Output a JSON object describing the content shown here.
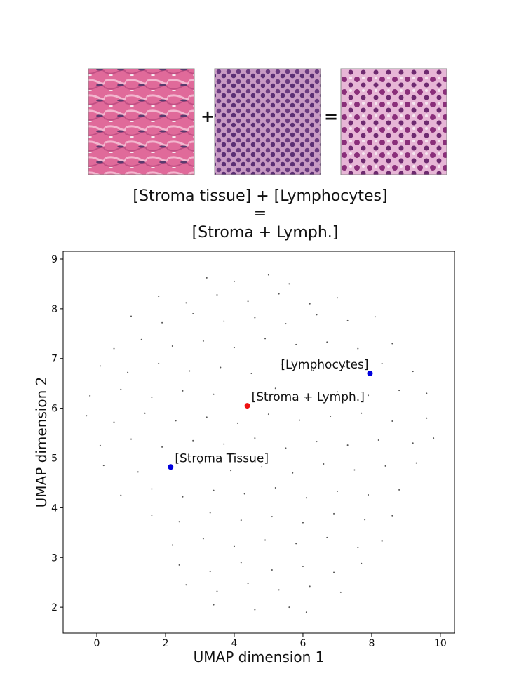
{
  "equation": {
    "plus": "+",
    "equals": "=",
    "caption": [
      "[Stroma tissue] + [Lymphocytes]",
      "=",
      "[Stroma + Lymph.]"
    ]
  },
  "chart_data": {
    "type": "scatter",
    "xlabel": "UMAP dimension 1",
    "ylabel": "UMAP dimension 2",
    "xlim": [
      -0.98,
      10.41
    ],
    "ylim": [
      1.48,
      9.155
    ],
    "xticks": [
      0,
      2,
      4,
      6,
      8,
      10
    ],
    "yticks": [
      2,
      3,
      4,
      5,
      6,
      7,
      8,
      9
    ],
    "series": [
      {
        "color": "#555555",
        "x": [
          3.2,
          4.0,
          5.0,
          5.6,
          1.8,
          2.6,
          3.5,
          4.4,
          5.3,
          6.2,
          7.0,
          1.0,
          1.9,
          2.8,
          3.7,
          4.6,
          5.5,
          6.4,
          7.3,
          8.1,
          0.5,
          1.3,
          2.2,
          3.1,
          4.0,
          4.9,
          5.8,
          6.7,
          7.6,
          8.6,
          0.1,
          0.9,
          1.8,
          2.7,
          3.6,
          4.5,
          5.4,
          6.3,
          7.2,
          8.3,
          9.2,
          -0.2,
          0.7,
          1.6,
          2.5,
          3.4,
          5.2,
          6.1,
          7.0,
          7.9,
          8.8,
          9.6,
          -0.3,
          0.5,
          1.4,
          2.3,
          3.2,
          4.1,
          5.0,
          5.9,
          6.8,
          7.7,
          8.6,
          9.6,
          0.1,
          1.0,
          1.9,
          2.8,
          3.7,
          4.6,
          5.5,
          6.4,
          7.3,
          8.2,
          9.2,
          9.8,
          0.2,
          1.2,
          3.0,
          3.9,
          4.8,
          5.7,
          6.6,
          7.5,
          8.4,
          9.3,
          0.7,
          1.6,
          2.5,
          3.4,
          4.3,
          5.2,
          6.1,
          7.0,
          7.9,
          8.8,
          1.6,
          2.4,
          3.3,
          4.2,
          5.1,
          6.0,
          6.9,
          7.8,
          8.6,
          2.2,
          3.1,
          4.0,
          4.9,
          5.8,
          6.7,
          7.6,
          8.3,
          2.4,
          3.3,
          4.2,
          5.1,
          6.0,
          6.9,
          7.7,
          2.6,
          3.5,
          4.4,
          5.3,
          6.2,
          7.1,
          3.4,
          4.6,
          5.6,
          6.1
        ],
        "y": [
          8.62,
          8.55,
          8.68,
          8.5,
          8.25,
          8.12,
          8.28,
          8.15,
          8.3,
          8.1,
          8.22,
          7.85,
          7.72,
          7.9,
          7.75,
          7.82,
          7.7,
          7.88,
          7.76,
          7.84,
          7.2,
          7.38,
          7.25,
          7.35,
          7.22,
          7.4,
          7.28,
          7.33,
          7.2,
          7.3,
          6.85,
          6.72,
          6.9,
          6.75,
          6.82,
          6.7,
          6.88,
          6.76,
          6.84,
          6.9,
          6.74,
          6.25,
          6.38,
          6.22,
          6.35,
          6.28,
          6.4,
          6.2,
          6.33,
          6.26,
          6.36,
          6.3,
          5.85,
          5.72,
          5.9,
          5.75,
          5.82,
          5.7,
          5.88,
          5.76,
          5.84,
          5.9,
          5.74,
          5.8,
          5.25,
          5.38,
          5.22,
          5.35,
          5.28,
          5.4,
          5.2,
          5.33,
          5.26,
          5.36,
          5.3,
          5.4,
          4.85,
          4.72,
          4.9,
          4.75,
          4.82,
          4.7,
          4.88,
          4.76,
          4.84,
          4.9,
          4.25,
          4.38,
          4.22,
          4.35,
          4.28,
          4.4,
          4.2,
          4.33,
          4.26,
          4.36,
          3.85,
          3.72,
          3.9,
          3.75,
          3.82,
          3.7,
          3.88,
          3.76,
          3.84,
          3.25,
          3.38,
          3.22,
          3.35,
          3.28,
          3.4,
          3.2,
          3.33,
          2.85,
          2.72,
          2.9,
          2.75,
          2.82,
          2.7,
          2.88,
          2.45,
          2.32,
          2.48,
          2.35,
          2.42,
          2.3,
          2.05,
          1.95,
          2.0,
          1.9
        ]
      }
    ],
    "annotations": [
      {
        "text": "[Stroma Tissue]",
        "x": 2.15,
        "y": 4.82,
        "color": "#0000dd"
      },
      {
        "text": "[Lymphocytes]",
        "x": 7.95,
        "y": 6.7,
        "color": "#0000dd"
      },
      {
        "text": "[Stroma + Lymph.]",
        "x": 4.38,
        "y": 6.05,
        "color": "#ee1111"
      }
    ]
  }
}
